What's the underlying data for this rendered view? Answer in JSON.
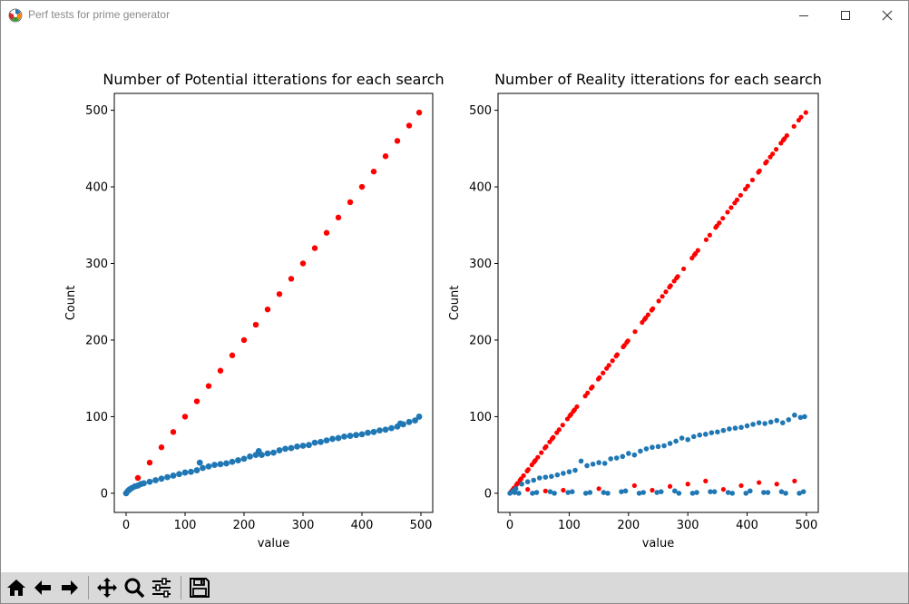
{
  "window": {
    "title": "Perf tests for prime generator",
    "icons": [
      "matplotlib-logo-icon",
      "minimize-icon",
      "maximize-icon",
      "close-icon"
    ]
  },
  "toolbar": {
    "buttons": [
      "home-icon",
      "back-arrow-icon",
      "forward-arrow-icon",
      "pan-icon",
      "zoom-icon",
      "configure-subplots-icon",
      "save-icon"
    ]
  },
  "colors": {
    "red": "#ff0000",
    "blue": "#1f77b4",
    "toolbar_bg": "#d9d9d9"
  },
  "chart_data": [
    {
      "type": "scatter",
      "title": "Number of Potential itterations for each search",
      "xlabel": "value",
      "ylabel": "Count",
      "xlim": [
        -20,
        520
      ],
      "ylim": [
        -25,
        522
      ],
      "xticks": [
        0,
        100,
        200,
        300,
        400,
        500
      ],
      "yticks": [
        0,
        100,
        200,
        300,
        400,
        500
      ],
      "grid": false,
      "series": [
        {
          "color": "#ff0000",
          "markersize": 3.2,
          "x": [
            0,
            20,
            40,
            60,
            80,
            100,
            120,
            140,
            160,
            180,
            200,
            220,
            240,
            260,
            280,
            300,
            320,
            340,
            360,
            380,
            400,
            420,
            440,
            460,
            480,
            497
          ],
          "y": [
            0,
            20,
            40,
            60,
            80,
            100,
            120,
            140,
            160,
            180,
            200,
            220,
            240,
            260,
            280,
            300,
            320,
            340,
            360,
            380,
            400,
            420,
            440,
            460,
            480,
            497
          ]
        },
        {
          "color": "#1f77b4",
          "markersize": 3.4,
          "x": [
            0,
            3,
            6,
            10,
            15,
            20,
            25,
            30,
            40,
            50,
            60,
            70,
            80,
            90,
            100,
            110,
            120,
            125,
            130,
            140,
            150,
            160,
            170,
            180,
            190,
            200,
            210,
            220,
            225,
            230,
            240,
            250,
            260,
            270,
            280,
            290,
            300,
            310,
            320,
            330,
            340,
            350,
            360,
            370,
            380,
            390,
            400,
            410,
            420,
            430,
            440,
            450,
            460,
            465,
            470,
            480,
            490,
            497
          ],
          "y": [
            0,
            3,
            5,
            7,
            9,
            10,
            12,
            13,
            15,
            17,
            19,
            21,
            23,
            25,
            27,
            28,
            30,
            40,
            33,
            35,
            37,
            38,
            39,
            41,
            43,
            45,
            48,
            50,
            55,
            50,
            52,
            53,
            56,
            58,
            59,
            61,
            62,
            63,
            66,
            67,
            69,
            71,
            72,
            74,
            75,
            76,
            77,
            79,
            80,
            82,
            83,
            85,
            87,
            91,
            90,
            93,
            95,
            100
          ]
        }
      ]
    },
    {
      "type": "scatter",
      "title": "Number of Reality itterations for each search",
      "xlabel": "value",
      "ylabel": "Count",
      "xlim": [
        -20,
        520
      ],
      "ylim": [
        -25,
        522
      ],
      "xticks": [
        0,
        100,
        200,
        300,
        400,
        500
      ],
      "yticks": [
        0,
        100,
        200,
        300,
        400,
        500
      ],
      "grid": false,
      "series": [
        {
          "color": "#ff0000",
          "markersize": 2.6,
          "x": [
            2,
            3,
            5,
            7,
            11,
            13,
            17,
            19,
            23,
            29,
            31,
            37,
            41,
            43,
            47,
            53,
            59,
            61,
            67,
            71,
            73,
            79,
            83,
            89,
            97,
            101,
            103,
            107,
            109,
            113,
            127,
            131,
            137,
            139,
            149,
            151,
            157,
            163,
            167,
            173,
            179,
            181,
            191,
            193,
            197,
            199,
            211,
            223,
            227,
            229,
            233,
            239,
            241,
            251,
            257,
            263,
            269,
            271,
            277,
            281,
            283,
            293,
            307,
            311,
            313,
            317,
            331,
            337,
            347,
            349,
            353,
            359,
            367,
            373,
            379,
            383,
            389,
            397,
            401,
            409,
            419,
            421,
            431,
            433,
            439,
            443,
            449,
            457,
            461,
            463,
            467,
            479,
            487,
            491,
            499,
            30,
            90,
            150,
            210,
            270,
            330,
            390,
            450,
            60,
            240,
            300,
            360,
            420,
            480
          ],
          "y": [
            2,
            3,
            5,
            7,
            11,
            13,
            17,
            19,
            23,
            29,
            31,
            37,
            41,
            43,
            47,
            53,
            59,
            61,
            67,
            71,
            73,
            79,
            83,
            89,
            97,
            101,
            103,
            107,
            109,
            113,
            127,
            131,
            137,
            139,
            149,
            151,
            157,
            163,
            167,
            173,
            179,
            181,
            191,
            193,
            197,
            199,
            211,
            223,
            227,
            229,
            233,
            239,
            241,
            251,
            257,
            263,
            269,
            271,
            277,
            281,
            283,
            293,
            307,
            311,
            313,
            317,
            331,
            337,
            347,
            349,
            353,
            359,
            367,
            373,
            379,
            383,
            389,
            397,
            401,
            409,
            419,
            421,
            431,
            433,
            439,
            443,
            449,
            457,
            461,
            463,
            467,
            479,
            487,
            491,
            497,
            5,
            4,
            6,
            10,
            9,
            16,
            10,
            12,
            3,
            4,
            12,
            5,
            14,
            16
          ]
        },
        {
          "color": "#1f77b4",
          "markersize": 2.8,
          "x": [
            0,
            5,
            10,
            20,
            30,
            40,
            50,
            60,
            70,
            80,
            90,
            100,
            110,
            120,
            130,
            140,
            150,
            160,
            170,
            180,
            190,
            200,
            210,
            220,
            230,
            240,
            250,
            260,
            270,
            280,
            290,
            300,
            310,
            320,
            330,
            340,
            350,
            360,
            370,
            380,
            390,
            400,
            410,
            420,
            430,
            440,
            450,
            460,
            470,
            480,
            490,
            497,
            15,
            45,
            75,
            105,
            135,
            165,
            195,
            225,
            255,
            285,
            315,
            345,
            375,
            405,
            435,
            465,
            495,
            8,
            38,
            68,
            98,
            128,
            158,
            188,
            218,
            248,
            278,
            308,
            338,
            368,
            398,
            428,
            458,
            488
          ],
          "y": [
            0,
            3,
            6,
            12,
            15,
            17,
            20,
            21,
            22,
            24,
            26,
            28,
            30,
            42,
            36,
            38,
            40,
            39,
            45,
            46,
            48,
            52,
            50,
            55,
            58,
            60,
            61,
            62,
            65,
            68,
            72,
            70,
            74,
            76,
            77,
            79,
            80,
            82,
            84,
            85,
            86,
            88,
            90,
            92,
            91,
            93,
            95,
            92,
            96,
            102,
            99,
            100,
            0,
            1,
            0,
            2,
            1,
            0,
            3,
            1,
            2,
            0,
            1,
            2,
            0,
            3,
            1,
            0,
            2,
            1,
            0,
            2,
            1,
            0,
            1,
            2,
            0,
            1,
            3,
            0,
            2,
            1,
            0,
            1,
            2,
            0
          ]
        }
      ]
    }
  ]
}
